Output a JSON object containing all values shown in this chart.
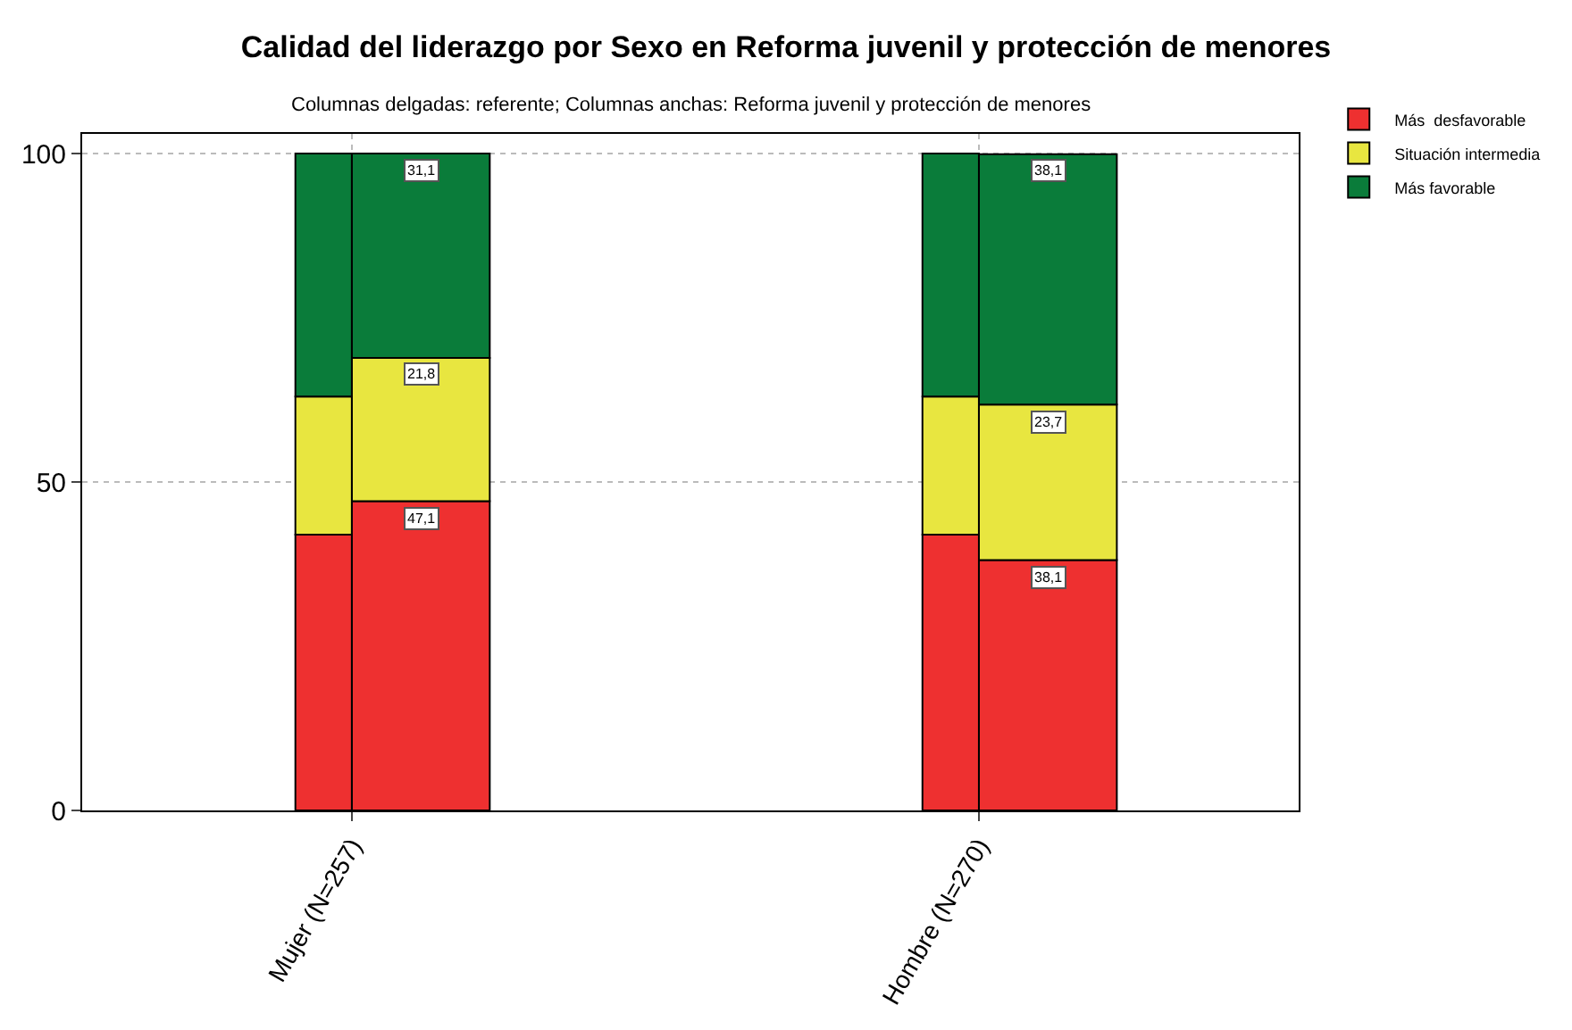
{
  "chart_data": {
    "type": "bar",
    "title": "Calidad del liderazgo por Sexo en Reforma juvenil y protección de menores",
    "subtitle": "Columnas delgadas: referente; Columnas anchas: Reforma juvenil y protección de menores",
    "categories": [
      "Mujer (N=257)",
      "Hombre (N=270)"
    ],
    "series": [
      {
        "name": "Más  desfavorable",
        "color": "#ee3030",
        "base": [
          0,
          0
        ],
        "values": [
          47.1,
          38.1
        ],
        "value_labels": [
          "47,1",
          "38,1"
        ]
      },
      {
        "name": "Situación intermedia",
        "color": "#e8e640",
        "base": [
          47.1,
          38.1
        ],
        "values": [
          21.8,
          23.7
        ],
        "value_labels": [
          "21,8",
          "23,7"
        ]
      },
      {
        "name": "Más favorable",
        "color": "#0a7c3a",
        "base": [
          68.9,
          61.8
        ],
        "values": [
          31.1,
          38.1
        ],
        "value_labels": [
          "31,1",
          "38,1"
        ]
      },
      {
        "color": "#ee3030",
        "base": [
          0,
          0
        ],
        "values": [
          42,
          42
        ]
      },
      {
        "color": "#e8e640",
        "base": [
          42,
          42
        ],
        "values": [
          21,
          21
        ]
      },
      {
        "color": "#0a7c3a",
        "base": [
          63,
          63
        ],
        "values": [
          37,
          37
        ]
      }
    ],
    "ylim": [
      0,
      103
    ],
    "yticks": [
      0,
      50,
      100
    ],
    "grid": true,
    "legend": "top right"
  }
}
